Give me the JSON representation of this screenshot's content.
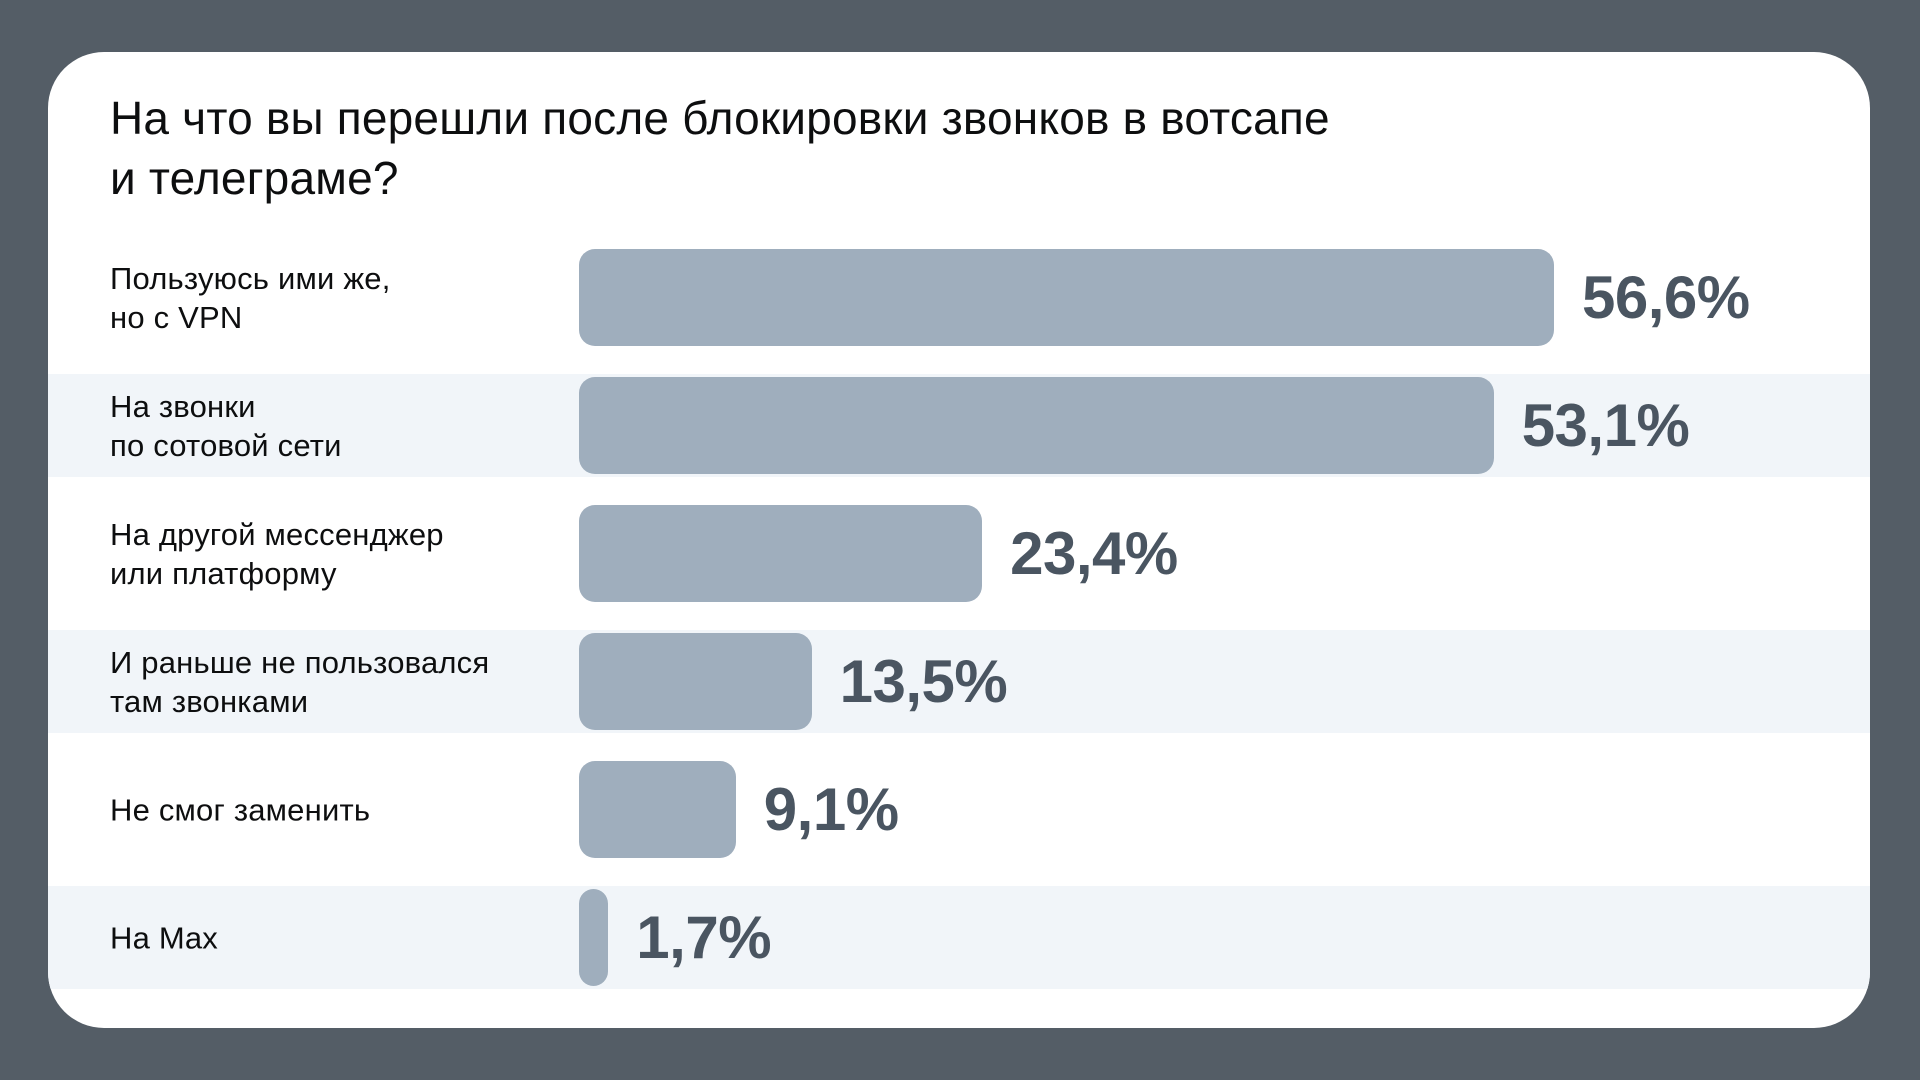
{
  "chart_data": {
    "type": "bar",
    "orientation": "horizontal",
    "title": "На что вы перешли после блокировки звонков в вотсапе\nи телеграме?",
    "categories": [
      "Пользуюсь ими же,\nно с VPN",
      "На звонки\nпо сотовой сети",
      "На другой мессенджер\nили платформу",
      "И раньше не пользовался\nтам звонками",
      "Не смог заменить",
      "На Max"
    ],
    "values": [
      56.6,
      53.1,
      23.4,
      13.5,
      9.1,
      1.7
    ],
    "value_labels": [
      "56,6%",
      "53,1%",
      "23,4%",
      "13,5%",
      "9,1%",
      "1,7%"
    ],
    "xlabel": "",
    "ylabel": "",
    "xlim": [
      0,
      60
    ],
    "grid": false,
    "legend": false,
    "row_stripes": "even rows shaded"
  },
  "colors": {
    "bg": "#545D66",
    "card": "#FFFFFF",
    "stripe": "#F1F5F9",
    "bar": "#9FAEBD",
    "value-text": "#4A5561",
    "text": "#0D0E0F"
  }
}
